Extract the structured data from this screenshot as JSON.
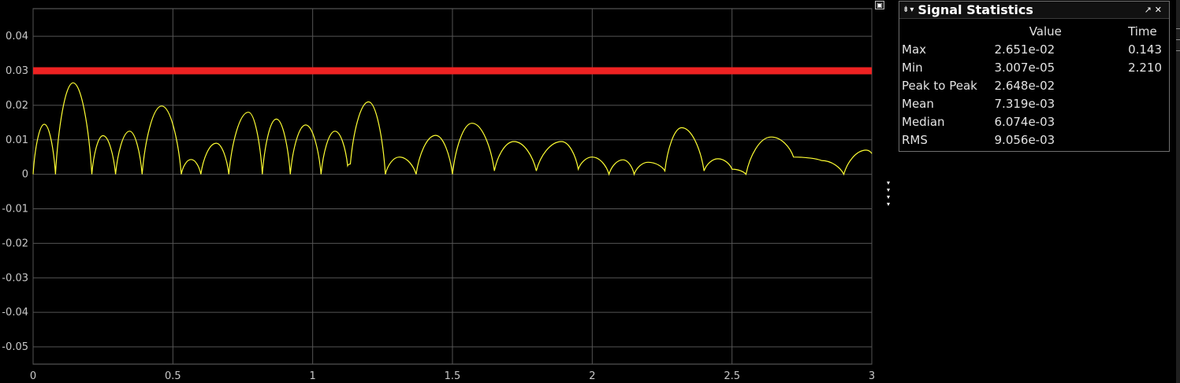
{
  "scope": {
    "background": "#000000",
    "grid_color": "#555555",
    "signal_color": "#ffff33",
    "threshold_color": "#ee2222"
  },
  "chart_data": {
    "type": "line",
    "title": "",
    "xlabel": "",
    "ylabel": "",
    "xlim": [
      0,
      3
    ],
    "ylim": [
      -0.055,
      0.048
    ],
    "grid": true,
    "x_ticks": [
      "0",
      "0.5",
      "1",
      "1.5",
      "2",
      "2.5",
      "3"
    ],
    "x_tick_values": [
      0,
      0.5,
      1,
      1.5,
      2,
      2.5,
      3
    ],
    "y_ticks": [
      "0.04",
      "0.03",
      "0.02",
      "0.01",
      "0",
      "-0.01",
      "-0.02",
      "-0.03",
      "-0.04",
      "-0.05"
    ],
    "y_tick_values": [
      0.04,
      0.03,
      0.02,
      0.01,
      0,
      -0.01,
      -0.02,
      -0.03,
      -0.04,
      -0.05
    ],
    "series": [
      {
        "color": "#ffff33",
        "x": [
          0,
          0.04,
          0.08,
          0.143,
          0.21,
          0.25,
          0.295,
          0.345,
          0.39,
          0.46,
          0.53,
          0.565,
          0.6,
          0.655,
          0.7,
          0.77,
          0.82,
          0.87,
          0.92,
          0.975,
          1.03,
          1.08,
          1.125,
          1.135,
          1.2,
          1.26,
          1.31,
          1.37,
          1.44,
          1.5,
          1.57,
          1.65,
          1.72,
          1.8,
          1.89,
          1.95,
          2.0,
          2.06,
          2.11,
          2.15,
          2.2,
          2.26,
          2.32,
          2.4,
          2.45,
          2.5,
          2.55,
          2.64,
          2.72,
          2.82,
          2.9,
          2.98,
          3.0
        ],
        "y": [
          0.0,
          0.0145,
          0.0,
          0.0265,
          0.0,
          0.0112,
          0.0,
          0.0125,
          0.0,
          0.0198,
          0.0,
          0.0043,
          0.0,
          0.009,
          0.0,
          0.018,
          0.0,
          0.016,
          0.0,
          0.0143,
          0.0,
          0.0125,
          0.0025,
          0.003,
          0.021,
          0.0,
          0.005,
          0.0,
          0.0113,
          0.0,
          0.0148,
          0.001,
          0.0095,
          0.001,
          0.0095,
          0.0015,
          0.005,
          0.0,
          0.0042,
          0.0,
          0.0035,
          0.001,
          0.0135,
          0.001,
          0.0045,
          0.0015,
          0.0,
          0.0108,
          0.005,
          0.004,
          0.0,
          0.007,
          0.006
        ]
      },
      {
        "color": "#ee2222",
        "x": [
          0,
          3
        ],
        "y": [
          0.03,
          0.03
        ]
      }
    ]
  },
  "stats": {
    "title": "Signal Statistics",
    "headers": {
      "value": "Value",
      "time": "Time"
    },
    "rows": [
      {
        "label": "Max",
        "value": "2.651e-02",
        "time": "0.143"
      },
      {
        "label": "Min",
        "value": "3.007e-05",
        "time": "2.210"
      },
      {
        "label": "Peak to Peak",
        "value": "2.648e-02",
        "time": ""
      },
      {
        "label": "Mean",
        "value": "7.319e-03",
        "time": ""
      },
      {
        "label": "Median",
        "value": "6.074e-03",
        "time": ""
      },
      {
        "label": "RMS",
        "value": "9.056e-03",
        "time": ""
      }
    ]
  }
}
